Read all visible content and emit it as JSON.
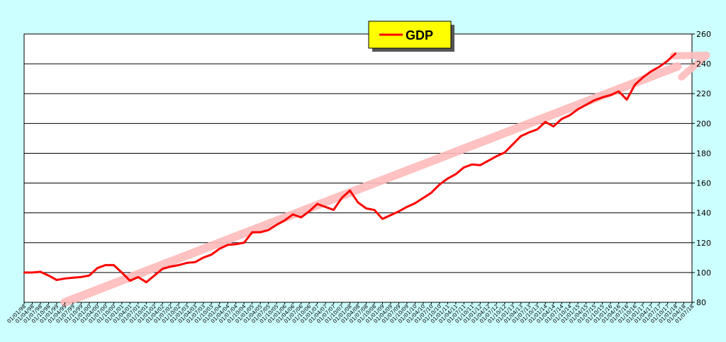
{
  "chart_data": {
    "type": "line",
    "title": "",
    "xlabel": "",
    "ylabel": "",
    "ylim": [
      80,
      260
    ],
    "y_ticks": [
      80,
      100,
      120,
      140,
      160,
      180,
      200,
      220,
      240,
      260
    ],
    "y_axis_side": "right",
    "grid": "horizontal",
    "legend": {
      "position": "top-center",
      "background": "#ffff00"
    },
    "x": [
      "01/01/98",
      "01/04/98",
      "01/07/98",
      "01/10/98",
      "01/01/99",
      "01/04/99",
      "01/07/99",
      "01/10/99",
      "01/01/00",
      "01/04/00",
      "01/07/00",
      "01/10/00",
      "01/01/01",
      "01/04/01",
      "01/07/01",
      "01/10/01",
      "01/01/02",
      "01/04/02",
      "01/07/02",
      "01/10/02",
      "01/01/03",
      "01/04/03",
      "01/07/03",
      "01/10/03",
      "01/01/04",
      "01/04/04",
      "01/07/04",
      "01/10/04",
      "01/01/05",
      "01/04/05",
      "01/07/05",
      "01/10/05",
      "01/01/06",
      "01/04/06",
      "01/07/06",
      "01/10/06",
      "01/01/07",
      "01/04/07",
      "01/07/07",
      "01/10/07",
      "01/01/08",
      "01/04/08",
      "01/07/08",
      "01/10/08",
      "01/01/09",
      "01/04/09",
      "01/07/09",
      "01/10/09",
      "01/01/10",
      "01/04/10",
      "01/07/10",
      "01/10/10",
      "01/01/11",
      "01/04/11",
      "01/07/11",
      "01/10/11",
      "01/01/12",
      "01/04/12",
      "01/07/12",
      "01/10/12",
      "01/01/13",
      "01/04/13",
      "01/07/13",
      "01/10/13",
      "01/01/14",
      "01/04/14",
      "01/07/14",
      "01/10/14",
      "01/01/15",
      "01/04/15",
      "01/07/15",
      "01/10/15",
      "01/01/16",
      "01/04/16",
      "01/07/16",
      "01/10/16",
      "01/01/17",
      "01/04/17",
      "01/07/17",
      "01/10/17",
      "01/01/18",
      "01/04/18",
      "01/07/18"
    ],
    "series": [
      {
        "name": "GDP",
        "color": "#ff0000",
        "values": [
          100,
          100,
          100.5,
          98,
          95,
          96,
          96.5,
          97,
          98,
          103,
          105,
          105,
          100,
          94.5,
          97,
          93.5,
          98,
          102.5,
          104,
          105,
          106.5,
          107,
          110,
          112,
          116,
          118.5,
          119,
          120,
          127,
          127,
          128.5,
          132,
          135,
          139,
          137,
          141,
          146,
          144,
          142,
          150,
          155,
          147,
          143,
          142,
          136,
          138.5,
          141,
          144,
          146.5,
          150,
          153.5,
          159,
          163,
          166,
          170.5,
          172.5,
          172,
          175,
          178,
          180.5,
          186,
          191.5,
          194,
          196,
          201,
          198,
          203,
          205.5,
          209.5,
          212.5,
          215.5,
          217.5,
          219,
          221.5,
          216,
          226,
          231,
          235,
          238,
          242,
          247,
          null,
          null
        ]
      }
    ],
    "trend_arrow": {
      "color": "#ffbbbb",
      "start": [
        "01/04/99",
        80
      ],
      "end": [
        "01/07/18",
        242
      ]
    }
  }
}
